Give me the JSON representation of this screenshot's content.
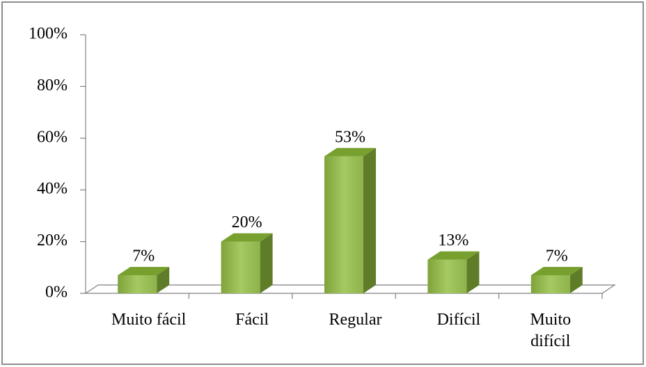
{
  "chart_data": {
    "type": "bar3d",
    "categories": [
      "Muito fácil",
      "Fácil",
      "Regular",
      "Difícil",
      "Muito difícil"
    ],
    "values": [
      7,
      20,
      53,
      13,
      7
    ],
    "value_labels": [
      "7%",
      "20%",
      "53%",
      "13%",
      "7%"
    ],
    "color": "#9bbb59",
    "ylim": [
      0,
      100
    ],
    "yticks": [
      {
        "value": 0,
        "label": "0%"
      },
      {
        "value": 20,
        "label": "20%"
      },
      {
        "value": 40,
        "label": "40%"
      },
      {
        "value": 60,
        "label": "60%"
      },
      {
        "value": 80,
        "label": "80%"
      },
      {
        "value": 100,
        "label": "100%"
      }
    ],
    "grid": false
  }
}
